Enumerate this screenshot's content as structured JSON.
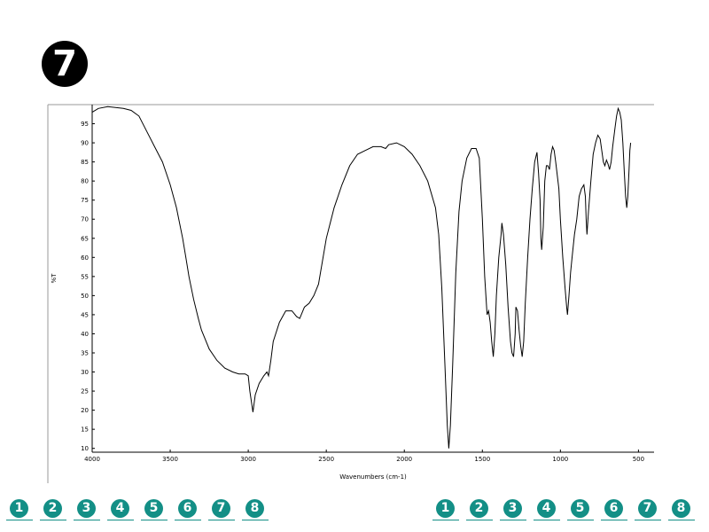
{
  "badge": {
    "number": "7"
  },
  "nav_left": [
    "1",
    "2",
    "3",
    "4",
    "5",
    "6",
    "7",
    "8"
  ],
  "nav_right": [
    "1",
    "2",
    "3",
    "4",
    "5",
    "6",
    "7",
    "8"
  ],
  "colors": {
    "nav_button": "#138f86",
    "badge": "#000000",
    "trace": "#000000"
  },
  "chart_data": {
    "type": "line",
    "title": "",
    "xlabel": "Wavenumbers (cm-1)",
    "ylabel": "%T",
    "xlim": [
      4000,
      400
    ],
    "ylim": [
      9,
      100
    ],
    "x_ticks": [
      4000,
      3500,
      3000,
      2500,
      2000,
      1500,
      1000,
      500
    ],
    "y_ticks": [
      10,
      15,
      20,
      25,
      30,
      35,
      40,
      45,
      50,
      55,
      60,
      65,
      70,
      75,
      80,
      85,
      90,
      95
    ],
    "grid": false,
    "series": [
      {
        "name": "",
        "points": [
          [
            4000,
            98
          ],
          [
            3960,
            99
          ],
          [
            3900,
            99.5
          ],
          [
            3800,
            99
          ],
          [
            3750,
            98.5
          ],
          [
            3700,
            97
          ],
          [
            3650,
            93
          ],
          [
            3600,
            89
          ],
          [
            3550,
            85
          ],
          [
            3500,
            79
          ],
          [
            3460,
            73
          ],
          [
            3420,
            65
          ],
          [
            3400,
            60
          ],
          [
            3380,
            55
          ],
          [
            3350,
            49
          ],
          [
            3320,
            44
          ],
          [
            3300,
            41
          ],
          [
            3250,
            36
          ],
          [
            3200,
            33
          ],
          [
            3150,
            31
          ],
          [
            3100,
            30
          ],
          [
            3060,
            29.5
          ],
          [
            3020,
            29.5
          ],
          [
            3000,
            29
          ],
          [
            2990,
            25
          ],
          [
            2970,
            19.5
          ],
          [
            2955,
            24
          ],
          [
            2930,
            27
          ],
          [
            2900,
            29
          ],
          [
            2880,
            30
          ],
          [
            2870,
            29
          ],
          [
            2855,
            33
          ],
          [
            2840,
            38
          ],
          [
            2800,
            43
          ],
          [
            2760,
            46
          ],
          [
            2720,
            46
          ],
          [
            2690,
            44.5
          ],
          [
            2670,
            44
          ],
          [
            2640,
            47
          ],
          [
            2610,
            48
          ],
          [
            2580,
            50
          ],
          [
            2550,
            53
          ],
          [
            2500,
            65
          ],
          [
            2450,
            73
          ],
          [
            2400,
            79
          ],
          [
            2350,
            84
          ],
          [
            2300,
            87
          ],
          [
            2250,
            88
          ],
          [
            2200,
            89
          ],
          [
            2150,
            89
          ],
          [
            2120,
            88.5
          ],
          [
            2100,
            89.5
          ],
          [
            2050,
            90
          ],
          [
            2000,
            89
          ],
          [
            1950,
            87
          ],
          [
            1900,
            84
          ],
          [
            1850,
            80
          ],
          [
            1800,
            73
          ],
          [
            1780,
            66
          ],
          [
            1760,
            52
          ],
          [
            1740,
            32
          ],
          [
            1725,
            16
          ],
          [
            1715,
            10
          ],
          [
            1705,
            16
          ],
          [
            1690,
            32
          ],
          [
            1670,
            56
          ],
          [
            1650,
            72
          ],
          [
            1630,
            80
          ],
          [
            1600,
            86
          ],
          [
            1570,
            88.5
          ],
          [
            1540,
            88.5
          ],
          [
            1520,
            86
          ],
          [
            1500,
            70
          ],
          [
            1485,
            55
          ],
          [
            1470,
            45
          ],
          [
            1460,
            46
          ],
          [
            1450,
            43
          ],
          [
            1440,
            38
          ],
          [
            1430,
            34
          ],
          [
            1420,
            40
          ],
          [
            1410,
            50
          ],
          [
            1395,
            60
          ],
          [
            1380,
            66
          ],
          [
            1375,
            69
          ],
          [
            1365,
            66
          ],
          [
            1350,
            58
          ],
          [
            1335,
            47
          ],
          [
            1320,
            38
          ],
          [
            1310,
            35
          ],
          [
            1300,
            34
          ],
          [
            1290,
            40
          ],
          [
            1285,
            47
          ],
          [
            1275,
            46
          ],
          [
            1265,
            41
          ],
          [
            1255,
            37
          ],
          [
            1245,
            34
          ],
          [
            1235,
            38
          ],
          [
            1225,
            48
          ],
          [
            1210,
            60
          ],
          [
            1195,
            70
          ],
          [
            1180,
            78
          ],
          [
            1165,
            85
          ],
          [
            1150,
            87.5
          ],
          [
            1140,
            82
          ],
          [
            1130,
            75
          ],
          [
            1125,
            65
          ],
          [
            1120,
            62
          ],
          [
            1110,
            68
          ],
          [
            1100,
            80
          ],
          [
            1090,
            84
          ],
          [
            1080,
            84
          ],
          [
            1070,
            83
          ],
          [
            1060,
            87
          ],
          [
            1050,
            89
          ],
          [
            1040,
            88
          ],
          [
            1030,
            85
          ],
          [
            1010,
            78
          ],
          [
            1000,
            70
          ],
          [
            985,
            60
          ],
          [
            970,
            52
          ],
          [
            960,
            47
          ],
          [
            955,
            45
          ],
          [
            945,
            50
          ],
          [
            935,
            56
          ],
          [
            925,
            60
          ],
          [
            910,
            66
          ],
          [
            895,
            70
          ],
          [
            880,
            76
          ],
          [
            865,
            78
          ],
          [
            850,
            79
          ],
          [
            840,
            76
          ],
          [
            835,
            70
          ],
          [
            830,
            66
          ],
          [
            820,
            72
          ],
          [
            805,
            80
          ],
          [
            790,
            87
          ],
          [
            775,
            90
          ],
          [
            760,
            92
          ],
          [
            745,
            91
          ],
          [
            735,
            88
          ],
          [
            725,
            85
          ],
          [
            715,
            84
          ],
          [
            705,
            85.5
          ],
          [
            695,
            84.5
          ],
          [
            685,
            83
          ],
          [
            675,
            85
          ],
          [
            665,
            89
          ],
          [
            650,
            94
          ],
          [
            640,
            97
          ],
          [
            630,
            99
          ],
          [
            620,
            98
          ],
          [
            610,
            96
          ],
          [
            600,
            90
          ],
          [
            590,
            82
          ],
          [
            582,
            76
          ],
          [
            575,
            73
          ],
          [
            568,
            76
          ],
          [
            560,
            83
          ],
          [
            555,
            88
          ],
          [
            550,
            90
          ]
        ]
      }
    ]
  }
}
